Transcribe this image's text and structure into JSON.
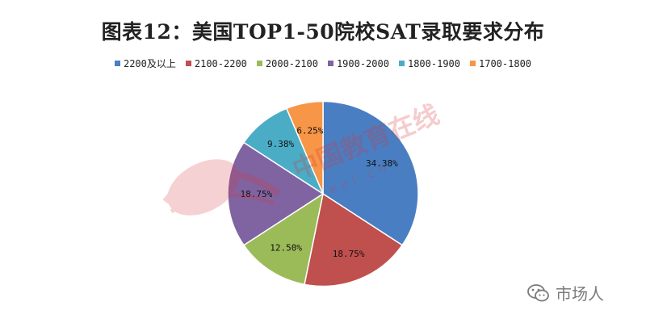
{
  "chart_data": {
    "type": "pie",
    "title": "图表12：美国TOP1-50院校SAT录取要求分布",
    "legend_position": "top",
    "slices": [
      {
        "name": "2200及以上",
        "value": 34.38,
        "label": "34.38%",
        "color": "#4a7ec2"
      },
      {
        "name": "2100-2200",
        "value": 18.75,
        "label": "18.75%",
        "color": "#c0504d"
      },
      {
        "name": "2000-2100",
        "value": 12.5,
        "label": "12.50%",
        "color": "#9bbb59"
      },
      {
        "name": "1900-2000",
        "value": 18.75,
        "label": "18.75%",
        "color": "#8064a2"
      },
      {
        "name": "1800-1900",
        "value": 9.38,
        "label": "9.38%",
        "color": "#4bacc6"
      },
      {
        "name": "1700-1800",
        "value": 6.25,
        "label": "6.25%",
        "color": "#f79646"
      }
    ]
  },
  "watermark": {
    "text": "中国教育在线",
    "url": "eol.cn"
  },
  "footer": {
    "wechat_account": "市场人"
  }
}
